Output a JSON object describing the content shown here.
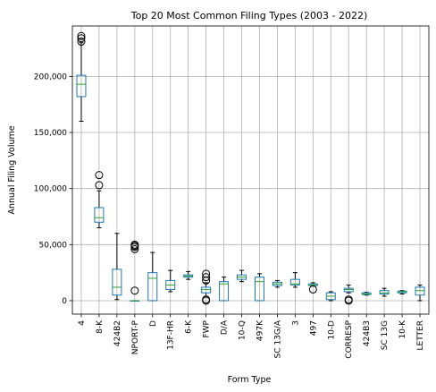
{
  "chart_data": {
    "type": "box",
    "title": "Top 20 Most Common Filing Types (2003 - 2022)",
    "xlabel": "Form Type",
    "ylabel": "Annual Filing Volume",
    "ylim": [
      -12000,
      245000
    ],
    "yticks": [
      0,
      50000,
      100000,
      150000,
      200000
    ],
    "ytick_labels": [
      "0",
      "50,000",
      "100,000",
      "150,000",
      "200,000"
    ],
    "grid": true,
    "colors": {
      "box": "#1f77b4",
      "median": "#2ca02c",
      "grid": "#b0b0b0",
      "whisker": "#000000"
    },
    "categories": [
      "4",
      "8-K",
      "424B2",
      "NPORT-P",
      "D",
      "13F-HR",
      "6-K",
      "FWP",
      "D/A",
      "10-Q",
      "497K",
      "SC 13G/A",
      "3",
      "497",
      "10-D",
      "CORRESP",
      "424B3",
      "SC 13G",
      "10-K",
      "LETTER"
    ],
    "boxes": [
      {
        "whislo": 160000,
        "q1": 182000,
        "med": 193000,
        "q3": 201000,
        "whishi": 230000,
        "fliers": [
          231000,
          234000,
          236000
        ]
      },
      {
        "whislo": 65000,
        "q1": 70000,
        "med": 74000,
        "q3": 83000,
        "whishi": 98000,
        "fliers": [
          103000,
          112000
        ]
      },
      {
        "whislo": 1000,
        "q1": 5000,
        "med": 12000,
        "q3": 28000,
        "whishi": 60000,
        "fliers": []
      },
      {
        "whislo": 0,
        "q1": 0,
        "med": 0,
        "q3": 0,
        "whishi": 0,
        "fliers": [
          9000,
          46000,
          48000,
          49000,
          50000
        ]
      },
      {
        "whislo": 0,
        "q1": 0,
        "med": 20000,
        "q3": 25000,
        "whishi": 43000,
        "fliers": []
      },
      {
        "whislo": 8000,
        "q1": 10000,
        "med": 14000,
        "q3": 18000,
        "whishi": 27000,
        "fliers": []
      },
      {
        "whislo": 19000,
        "q1": 21000,
        "med": 22000,
        "q3": 23000,
        "whishi": 26000,
        "fliers": []
      },
      {
        "whislo": 4000,
        "q1": 7000,
        "med": 10000,
        "q3": 12000,
        "whishi": 16000,
        "fliers": [
          0,
          1000,
          18000,
          21000,
          24000
        ]
      },
      {
        "whislo": 0,
        "q1": 0,
        "med": 15000,
        "q3": 17000,
        "whishi": 21000,
        "fliers": []
      },
      {
        "whislo": 17000,
        "q1": 19000,
        "med": 21000,
        "q3": 23000,
        "whishi": 27000,
        "fliers": []
      },
      {
        "whislo": 0,
        "q1": 0,
        "med": 17000,
        "q3": 21000,
        "whishi": 24000,
        "fliers": []
      },
      {
        "whislo": 12000,
        "q1": 13500,
        "med": 15000,
        "q3": 16500,
        "whishi": 18000,
        "fliers": []
      },
      {
        "whislo": 12000,
        "q1": 14000,
        "med": 15000,
        "q3": 19000,
        "whishi": 25000,
        "fliers": []
      },
      {
        "whislo": 13000,
        "q1": 13500,
        "med": 14000,
        "q3": 15000,
        "whishi": 16000,
        "fliers": [
          10000
        ]
      },
      {
        "whislo": 0,
        "q1": 1000,
        "med": 4000,
        "q3": 7000,
        "whishi": 8000,
        "fliers": []
      },
      {
        "whislo": 7000,
        "q1": 8000,
        "med": 10000,
        "q3": 11000,
        "whishi": 14000,
        "fliers": [
          0,
          1000
        ]
      },
      {
        "whislo": 5000,
        "q1": 5500,
        "med": 6000,
        "q3": 7000,
        "whishi": 7500,
        "fliers": []
      },
      {
        "whislo": 4000,
        "q1": 6000,
        "med": 7000,
        "q3": 9000,
        "whishi": 11000,
        "fliers": []
      },
      {
        "whislo": 6000,
        "q1": 7000,
        "med": 8000,
        "q3": 8500,
        "whishi": 9000,
        "fliers": []
      },
      {
        "whislo": 0,
        "q1": 5000,
        "med": 9000,
        "q3": 12000,
        "whishi": 14000,
        "fliers": []
      }
    ]
  }
}
